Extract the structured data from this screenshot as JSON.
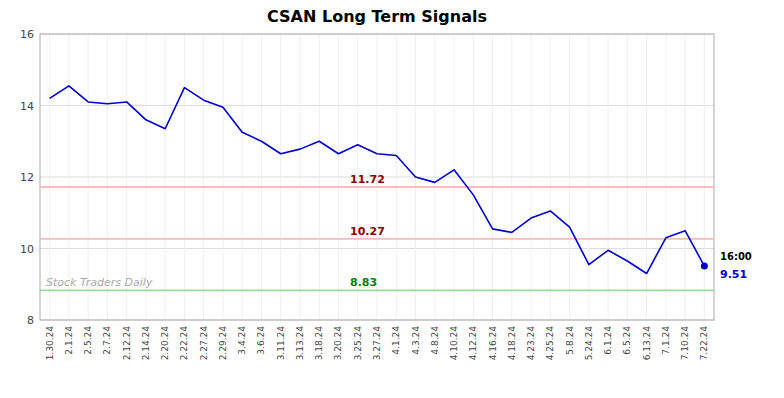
{
  "chart_data": {
    "type": "line",
    "title": "CSAN Long Term Signals",
    "categories": [
      "1.30.24",
      "2.1.24",
      "2.5.24",
      "2.7.24",
      "2.12.24",
      "2.14.24",
      "2.20.24",
      "2.22.24",
      "2.27.24",
      "2.29.24",
      "3.4.24",
      "3.6.24",
      "3.11.24",
      "3.13.24",
      "3.18.24",
      "3.20.24",
      "3.25.24",
      "3.27.24",
      "4.1.24",
      "4.3.24",
      "4.8.24",
      "4.10.24",
      "4.12.24",
      "4.16.24",
      "4.18.24",
      "4.23.24",
      "4.25.24",
      "5.8.24",
      "5.24.24",
      "6.1.24",
      "6.5.24",
      "6.13.24",
      "7.1.24",
      "7.10.24",
      "7.22.24"
    ],
    "series": [
      {
        "color": "#0000cc",
        "values": [
          14.2,
          14.55,
          14.1,
          14.05,
          14.1,
          13.6,
          13.35,
          14.5,
          14.15,
          13.95,
          13.25,
          13.0,
          12.65,
          12.78,
          13.0,
          12.65,
          12.9,
          12.65,
          12.6,
          12.0,
          11.85,
          12.2,
          11.5,
          10.55,
          10.45,
          10.85,
          11.05,
          10.6,
          9.55,
          9.95,
          9.65,
          9.3,
          10.3,
          10.5,
          9.51
        ]
      }
    ],
    "reference_lines": [
      {
        "value": 11.72,
        "label": "11.72",
        "color": "#ffbbbb",
        "label_color": "#8b0000"
      },
      {
        "value": 10.27,
        "label": "10.27",
        "color": "#ffbbbb",
        "label_color": "#8b0000"
      },
      {
        "value": 8.83,
        "label": "8.83",
        "color": "#99dd99",
        "label_color": "#008000"
      }
    ],
    "last_point_labels": [
      "16:00",
      "9.51"
    ],
    "watermark": "Stock Traders Daily",
    "ylim": [
      8,
      16
    ],
    "yticks": [
      8,
      10,
      12,
      14,
      16
    ],
    "grid": true
  }
}
